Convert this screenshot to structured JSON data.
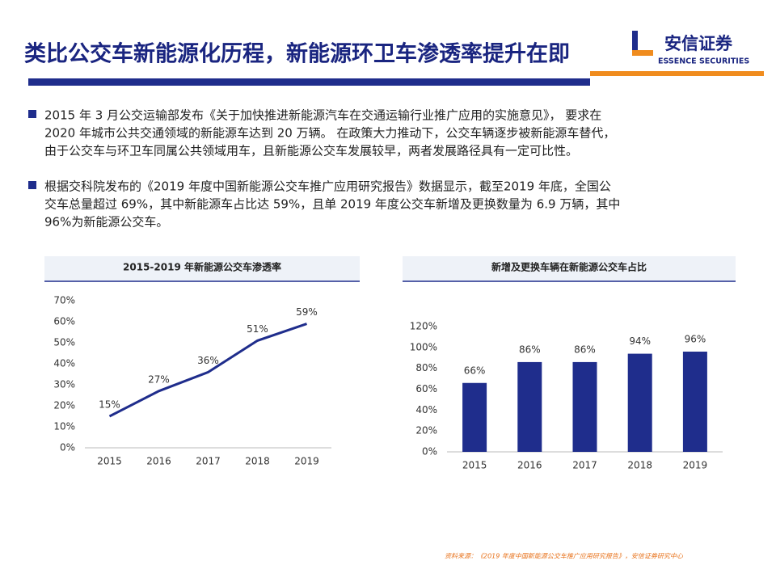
{
  "header": {
    "title": "类比公交车新能源化历程，新能源环卫车渗透率提升在即",
    "logo": "安信证券",
    "logo_en": "ESSENCE SECURITIES"
  },
  "bullets": [
    {
      "lines": [
        "2015 年 3 月公交运输部发布《关于加快推进新能源汽车在交通运输行业推广应用的实施意见》， 要求在",
        "2020 年城市公共交通领域的新能源车达到 20 万辆。 在政策大力推动下，公交车辆逐步被新能源车替代，",
        "由于公交车与环卫车同属公共领域用车，且新能源公交车发展较早，两者发展路径具有一定可比性。"
      ]
    },
    {
      "lines": [
        "根据交科院发布的《2019 年度中国新能源公交车推广应用研究报告》数据显示，截至2019 年底，全国公",
        "交车总量超过 69%，其中新能源车占比达 59%，且单 2019 年度公交车新增及更换数量为 6.9 万辆，其中",
        "96%为新能源公交车。"
      ]
    }
  ],
  "chart_data": [
    {
      "type": "line",
      "title": "2015-2019 年新能源公交车渗透率",
      "categories": [
        "2015",
        "2016",
        "2017",
        "2018",
        "2019"
      ],
      "values": [
        15,
        27,
        36,
        51,
        59
      ],
      "value_labels": [
        "15%",
        "27%",
        "36%",
        "51%",
        "59%"
      ],
      "color": "#1f2d8c",
      "ylim": [
        0,
        70
      ],
      "yticks": [
        {
          "value": 0,
          "label": "0%"
        },
        {
          "value": 10,
          "label": "10%"
        },
        {
          "value": 20,
          "label": "20%"
        },
        {
          "value": 30,
          "label": "30%"
        },
        {
          "value": 40,
          "label": "40%"
        },
        {
          "value": 50,
          "label": "50%"
        },
        {
          "value": 60,
          "label": "60%"
        },
        {
          "value": 70,
          "label": "70%"
        }
      ],
      "grid": false
    },
    {
      "type": "bar",
      "title": "新增及更换车辆在新能源公交车占比",
      "categories": [
        "2015",
        "2016",
        "2017",
        "2018",
        "2019"
      ],
      "values": [
        66,
        86,
        86,
        94,
        96
      ],
      "value_labels": [
        "66%",
        "86%",
        "86%",
        "94%",
        "96%"
      ],
      "color": "#1f2d8c",
      "ylim": [
        0,
        120
      ],
      "yticks": [
        {
          "value": 0,
          "label": "0%"
        },
        {
          "value": 20,
          "label": "20%"
        },
        {
          "value": 40,
          "label": "40%"
        },
        {
          "value": 60,
          "label": "60%"
        },
        {
          "value": 80,
          "label": "80%"
        },
        {
          "value": 100,
          "label": "100%"
        },
        {
          "value": 120,
          "label": "120%"
        }
      ],
      "grid": false
    }
  ],
  "source": "资料来源：《2019 年度中国新能源公交车推广应用研究报告》，安信证券研究中心"
}
